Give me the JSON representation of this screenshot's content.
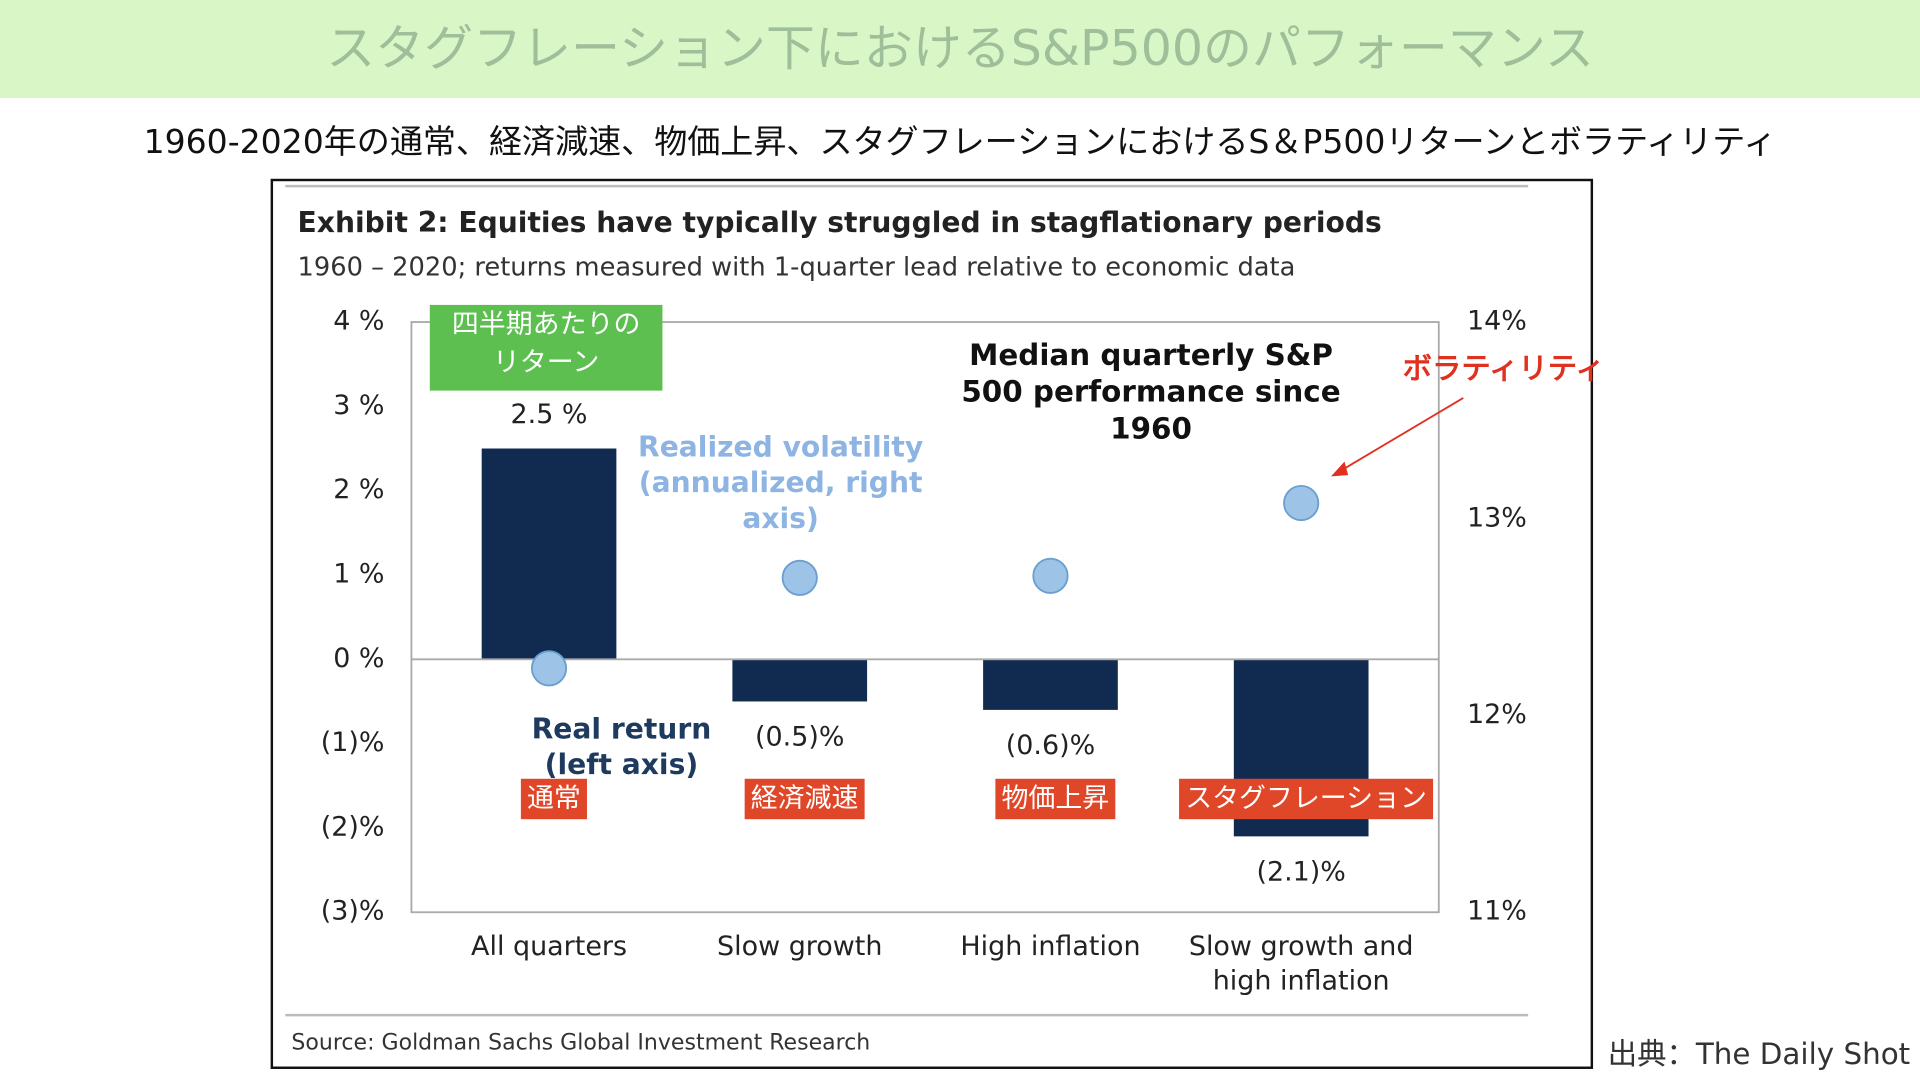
{
  "header": {
    "title": "スタグフレーション下におけるS&P500のパフォーマンス",
    "subtitle": "1960-2020年の通常、経済減速、物価上昇、スタグフレーションにおけるS＆P500リターンとボラティリティ"
  },
  "chart_data": {
    "type": "bar",
    "title": "Exhibit 2: Equities have typically struggled in stagflationary periods",
    "subtitle": "1960 – 2020; returns measured with 1-quarter lead relative to economic data",
    "categories": [
      "All quarters",
      "Slow growth",
      "High inflation",
      "Slow growth and high inflation"
    ],
    "category_labels": [
      "通常",
      "経済減速",
      "物価上昇",
      "スタグフレーション"
    ],
    "series": [
      {
        "name": "Real return (left axis)",
        "color": "#112a50",
        "values": [
          2.5,
          -0.5,
          -0.6,
          -2.1
        ],
        "value_labels": [
          "2.5 %",
          "(0.5)%",
          "(0.6)%",
          "(2.1)%"
        ]
      },
      {
        "name": "Realized volatility (annualized, right axis)",
        "color": "#9dc3e6",
        "axis": "y2",
        "values": [
          12.24,
          12.7,
          12.71,
          13.08
        ]
      }
    ],
    "ylim": [
      -3,
      4
    ],
    "yticks": [
      {
        "value": -3,
        "label": "(3)%"
      },
      {
        "value": -2,
        "label": "(2)%"
      },
      {
        "value": -1,
        "label": "(1)%"
      },
      {
        "value": 0,
        "label": "0 %"
      },
      {
        "value": 1,
        "label": "1 %"
      },
      {
        "value": 2,
        "label": "2 %"
      },
      {
        "value": 3,
        "label": "3 %"
      },
      {
        "value": 4,
        "label": "4 %"
      }
    ],
    "y2lim": [
      11,
      14
    ],
    "y2ticks": [
      {
        "value": 11,
        "label": "11%"
      },
      {
        "value": 12,
        "label": "12%"
      },
      {
        "value": 13,
        "label": "13%"
      },
      {
        "value": 14,
        "label": "14%"
      }
    ],
    "annotations": [
      "Median quarterly S&P 500 performance since 1960",
      "四半期あたりのリターン",
      "ボラティリティ"
    ],
    "source": "Source: Goldman Sachs Global Investment Research"
  },
  "credit": "出典：The Daily Shot"
}
